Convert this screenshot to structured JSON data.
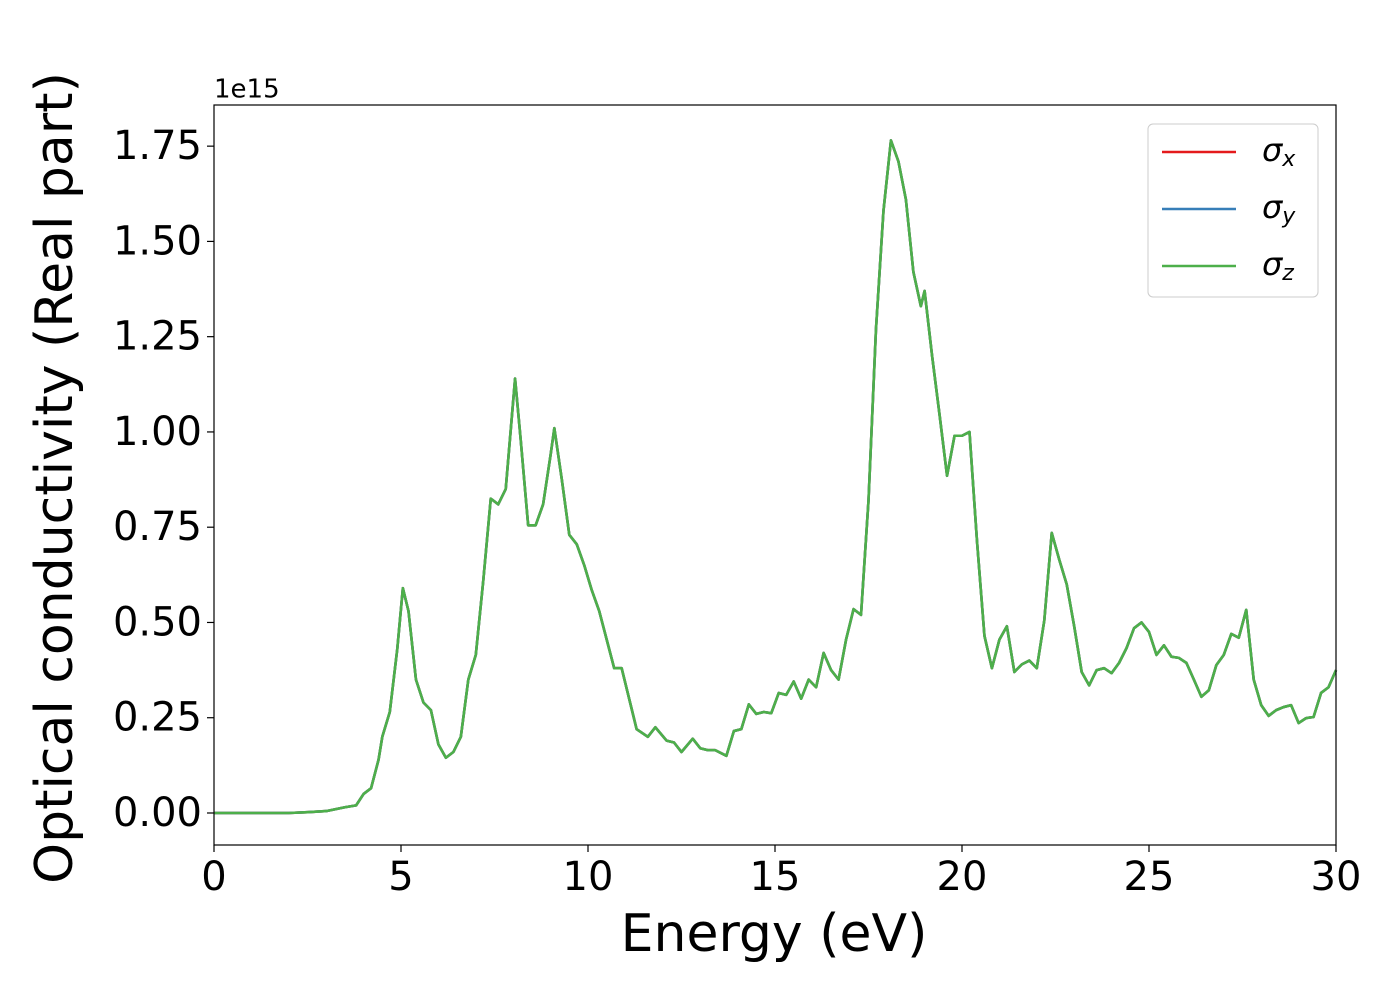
{
  "chart_data": {
    "type": "line",
    "xlabel": "Energy (eV)",
    "ylabel": "Optical conductivity (Real part)",
    "y_offset_label": "1e15",
    "x": [
      0,
      1,
      2,
      2.5,
      3,
      3.5,
      3.8,
      4,
      4.2,
      4.4,
      4.5,
      4.7,
      4.9,
      5.05,
      5.2,
      5.4,
      5.6,
      5.8,
      6,
      6.2,
      6.4,
      6.6,
      6.8,
      7,
      7.2,
      7.4,
      7.6,
      7.8,
      8.05,
      8.2,
      8.4,
      8.6,
      8.8,
      9,
      9.1,
      9.3,
      9.5,
      9.7,
      9.9,
      10.1,
      10.3,
      10.5,
      10.7,
      10.9,
      11.1,
      11.3,
      11.6,
      11.8,
      12.1,
      12.3,
      12.5,
      12.8,
      13,
      13.2,
      13.4,
      13.7,
      13.9,
      14.1,
      14.3,
      14.5,
      14.7,
      14.9,
      15.1,
      15.3,
      15.5,
      15.7,
      15.9,
      16.1,
      16.3,
      16.5,
      16.7,
      16.9,
      17.1,
      17.3,
      17.5,
      17.7,
      17.9,
      18.1,
      18.3,
      18.5,
      18.7,
      18.9,
      19,
      19.2,
      19.4,
      19.6,
      19.8,
      20,
      20.2,
      20.4,
      20.6,
      20.8,
      21,
      21.2,
      21.4,
      21.6,
      21.8,
      22,
      22.2,
      22.4,
      22.6,
      22.8,
      23,
      23.2,
      23.4,
      23.6,
      23.8,
      24,
      24.2,
      24.4,
      24.6,
      24.8,
      25,
      25.2,
      25.4,
      25.6,
      25.8,
      26,
      26.2,
      26.4,
      26.6,
      26.8,
      27,
      27.2,
      27.4,
      27.6,
      27.8,
      28,
      28.2,
      28.4,
      28.6,
      28.8,
      29,
      29.2,
      29.4,
      29.6,
      29.8,
      30
    ],
    "series": [
      {
        "name": "σx",
        "color": "#e41a1c",
        "values": [
          0,
          0,
          0,
          0.002,
          0.005,
          0.015,
          0.02,
          0.05,
          0.065,
          0.14,
          0.2,
          0.265,
          0.43,
          0.59,
          0.53,
          0.35,
          0.29,
          0.27,
          0.18,
          0.145,
          0.16,
          0.2,
          0.35,
          0.415,
          0.61,
          0.825,
          0.81,
          0.85,
          1.14,
          0.98,
          0.755,
          0.755,
          0.81,
          0.94,
          1.01,
          0.875,
          0.73,
          0.705,
          0.65,
          0.585,
          0.53,
          0.455,
          0.38,
          0.38,
          0.3,
          0.22,
          0.2,
          0.225,
          0.19,
          0.185,
          0.16,
          0.195,
          0.17,
          0.165,
          0.165,
          0.15,
          0.215,
          0.22,
          0.285,
          0.26,
          0.265,
          0.262,
          0.315,
          0.31,
          0.345,
          0.3,
          0.35,
          0.33,
          0.42,
          0.375,
          0.35,
          0.455,
          0.535,
          0.52,
          0.82,
          1.27,
          1.58,
          1.765,
          1.71,
          1.61,
          1.42,
          1.33,
          1.37,
          1.2,
          1.045,
          0.885,
          0.99,
          0.99,
          1.0,
          0.715,
          0.465,
          0.38,
          0.455,
          0.49,
          0.37,
          0.39,
          0.4,
          0.38,
          0.505,
          0.735,
          0.665,
          0.6,
          0.49,
          0.37,
          0.335,
          0.375,
          0.38,
          0.367,
          0.394,
          0.433,
          0.485,
          0.5,
          0.475,
          0.415,
          0.44,
          0.41,
          0.407,
          0.394,
          0.35,
          0.305,
          0.322,
          0.388,
          0.415,
          0.47,
          0.46,
          0.533,
          0.35,
          0.283,
          0.255,
          0.27,
          0.278,
          0.283,
          0.236,
          0.249,
          0.252,
          0.315,
          0.33,
          0.375
        ]
      },
      {
        "name": "σy",
        "color": "#377eb8",
        "values": [
          0,
          0,
          0,
          0.002,
          0.005,
          0.015,
          0.02,
          0.05,
          0.065,
          0.14,
          0.2,
          0.265,
          0.43,
          0.59,
          0.53,
          0.35,
          0.29,
          0.27,
          0.18,
          0.145,
          0.16,
          0.2,
          0.35,
          0.415,
          0.61,
          0.825,
          0.81,
          0.85,
          1.14,
          0.98,
          0.755,
          0.755,
          0.81,
          0.94,
          1.01,
          0.875,
          0.73,
          0.705,
          0.65,
          0.585,
          0.53,
          0.455,
          0.38,
          0.38,
          0.3,
          0.22,
          0.2,
          0.225,
          0.19,
          0.185,
          0.16,
          0.195,
          0.17,
          0.165,
          0.165,
          0.15,
          0.215,
          0.22,
          0.285,
          0.26,
          0.265,
          0.262,
          0.315,
          0.31,
          0.345,
          0.3,
          0.35,
          0.33,
          0.42,
          0.375,
          0.35,
          0.455,
          0.535,
          0.52,
          0.82,
          1.27,
          1.58,
          1.765,
          1.71,
          1.61,
          1.42,
          1.33,
          1.37,
          1.2,
          1.045,
          0.885,
          0.99,
          0.99,
          1.0,
          0.715,
          0.465,
          0.38,
          0.455,
          0.49,
          0.37,
          0.39,
          0.4,
          0.38,
          0.505,
          0.735,
          0.665,
          0.6,
          0.49,
          0.37,
          0.335,
          0.375,
          0.38,
          0.367,
          0.394,
          0.433,
          0.485,
          0.5,
          0.475,
          0.415,
          0.44,
          0.41,
          0.407,
          0.394,
          0.35,
          0.305,
          0.322,
          0.388,
          0.415,
          0.47,
          0.46,
          0.533,
          0.35,
          0.283,
          0.255,
          0.27,
          0.278,
          0.283,
          0.236,
          0.249,
          0.252,
          0.315,
          0.33,
          0.375
        ]
      },
      {
        "name": "σz",
        "color": "#4daf4a",
        "values": [
          0,
          0,
          0,
          0.002,
          0.005,
          0.015,
          0.02,
          0.05,
          0.065,
          0.14,
          0.2,
          0.265,
          0.43,
          0.59,
          0.53,
          0.35,
          0.29,
          0.27,
          0.18,
          0.145,
          0.16,
          0.2,
          0.35,
          0.415,
          0.61,
          0.825,
          0.81,
          0.85,
          1.14,
          0.98,
          0.755,
          0.755,
          0.81,
          0.94,
          1.01,
          0.875,
          0.73,
          0.705,
          0.65,
          0.585,
          0.53,
          0.455,
          0.38,
          0.38,
          0.3,
          0.22,
          0.2,
          0.225,
          0.19,
          0.185,
          0.16,
          0.195,
          0.17,
          0.165,
          0.165,
          0.15,
          0.215,
          0.22,
          0.285,
          0.26,
          0.265,
          0.262,
          0.315,
          0.31,
          0.345,
          0.3,
          0.35,
          0.33,
          0.42,
          0.375,
          0.35,
          0.455,
          0.535,
          0.52,
          0.82,
          1.27,
          1.58,
          1.765,
          1.71,
          1.61,
          1.42,
          1.33,
          1.37,
          1.2,
          1.045,
          0.885,
          0.99,
          0.99,
          1.0,
          0.715,
          0.465,
          0.38,
          0.455,
          0.49,
          0.37,
          0.39,
          0.4,
          0.38,
          0.505,
          0.735,
          0.665,
          0.6,
          0.49,
          0.37,
          0.335,
          0.375,
          0.38,
          0.367,
          0.394,
          0.433,
          0.485,
          0.5,
          0.475,
          0.415,
          0.44,
          0.41,
          0.407,
          0.394,
          0.35,
          0.305,
          0.322,
          0.388,
          0.415,
          0.47,
          0.46,
          0.533,
          0.35,
          0.283,
          0.255,
          0.27,
          0.278,
          0.283,
          0.236,
          0.249,
          0.252,
          0.315,
          0.33,
          0.375
        ]
      }
    ],
    "xlim": [
      0,
      30
    ],
    "xticks": [
      0,
      5,
      10,
      15,
      20,
      25,
      30
    ],
    "ylim": [
      -0.084,
      1.858
    ],
    "yticks": [
      {
        "value": 0,
        "label": "0.00"
      },
      0.25,
      {
        "value": 0.5,
        "label": "0.50"
      },
      0.75,
      {
        "value": 1,
        "label": "1.00"
      },
      1.25,
      {
        "value": 1.5,
        "label": "1.50"
      },
      1.75
    ],
    "grid": false,
    "legend": "upper right"
  }
}
